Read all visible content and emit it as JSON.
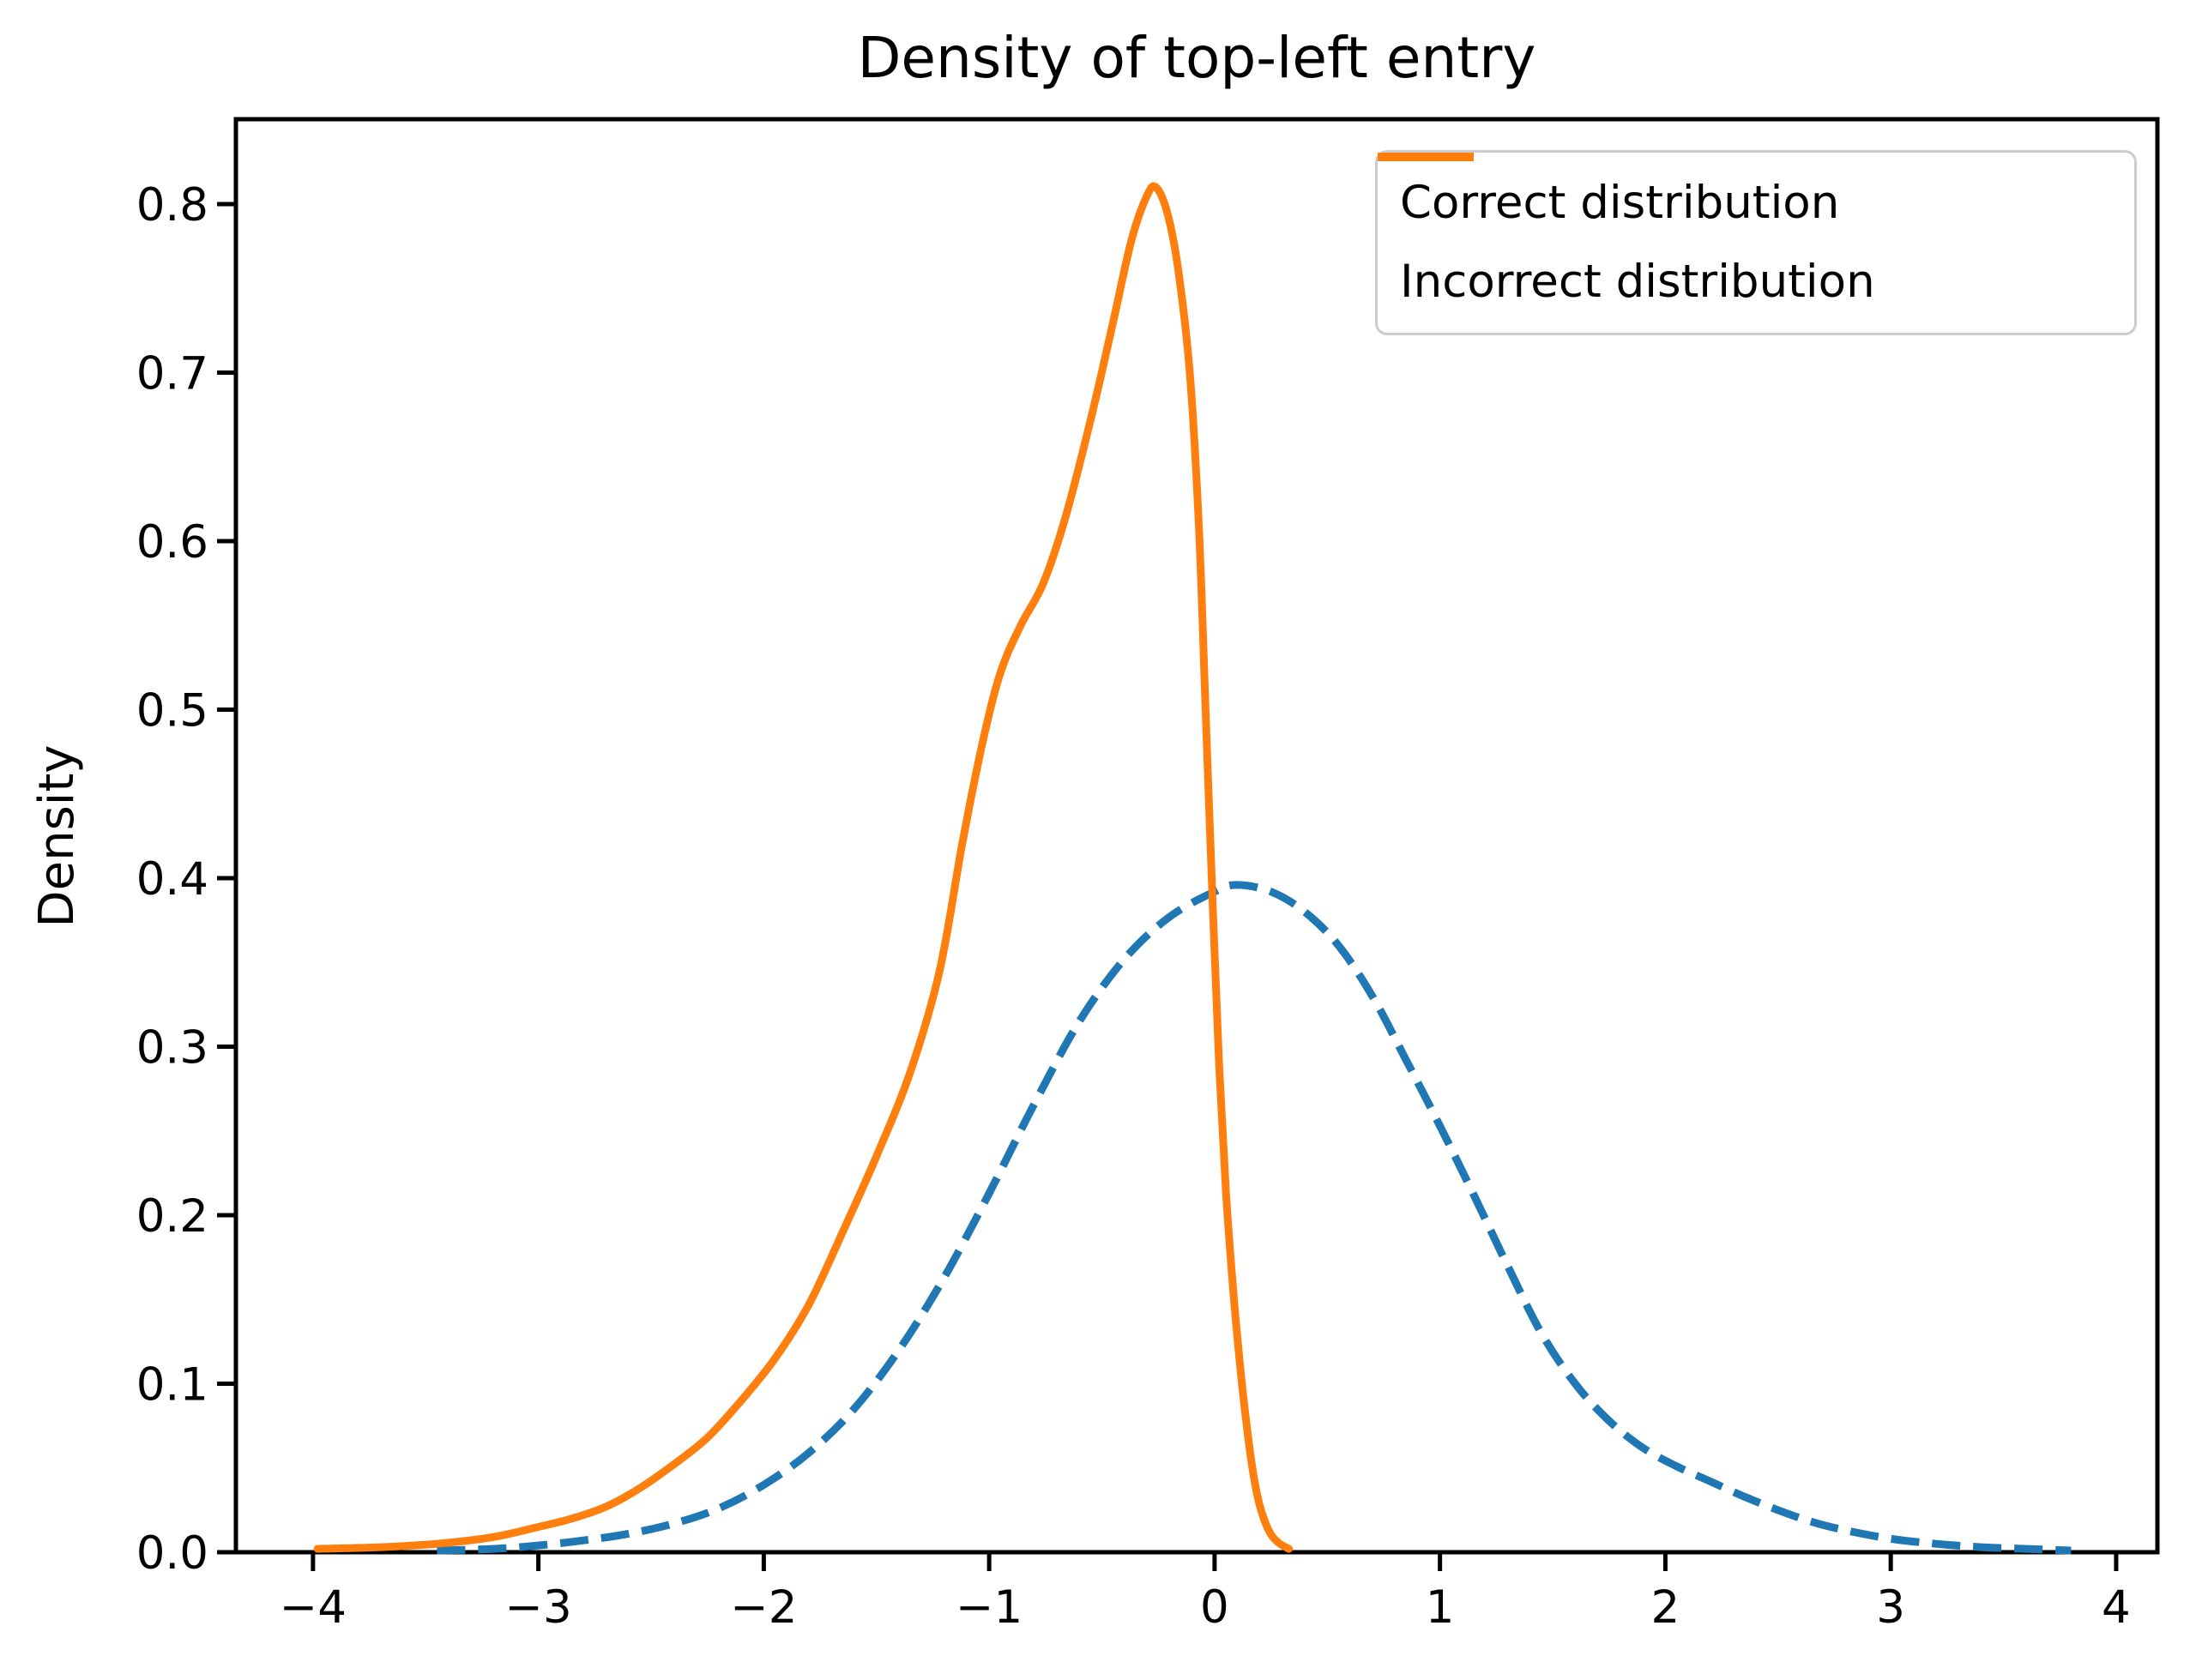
{
  "chart_data": {
    "type": "line",
    "title": "Density of top-left entry",
    "xlabel": "",
    "ylabel": "Density",
    "grid": false,
    "legend_position": "upper right",
    "xlim": [
      -4.342,
      4.183
    ],
    "ylim": [
      0,
      0.8504
    ],
    "x_ticks": [
      -4,
      -3,
      -2,
      -1,
      0,
      1,
      2,
      3,
      4
    ],
    "x_tick_labels": [
      "−4",
      "−3",
      "−2",
      "−1",
      "0",
      "1",
      "2",
      "3",
      "4"
    ],
    "y_ticks": [
      0.0,
      0.1,
      0.2,
      0.3,
      0.4,
      0.5,
      0.6,
      0.7,
      0.8
    ],
    "y_tick_labels": [
      "0.0",
      "0.1",
      "0.2",
      "0.3",
      "0.4",
      "0.5",
      "0.6",
      "0.7",
      "0.8"
    ],
    "series": [
      {
        "name": "Correct distribution",
        "color": "#1f77b4",
        "style": "dashed",
        "peak": {
          "x": 0.1,
          "density": 0.396
        },
        "points": [
          [
            -3.45,
            0.001
          ],
          [
            -3.2,
            0.002
          ],
          [
            -3.0,
            0.004
          ],
          [
            -2.8,
            0.007
          ],
          [
            -2.6,
            0.011
          ],
          [
            -2.4,
            0.017
          ],
          [
            -2.2,
            0.026
          ],
          [
            -2.0,
            0.04
          ],
          [
            -1.8,
            0.059
          ],
          [
            -1.6,
            0.085
          ],
          [
            -1.4,
            0.12
          ],
          [
            -1.2,
            0.163
          ],
          [
            -1.0,
            0.213
          ],
          [
            -0.8,
            0.266
          ],
          [
            -0.6,
            0.315
          ],
          [
            -0.4,
            0.352
          ],
          [
            -0.2,
            0.377
          ],
          [
            0.0,
            0.392
          ],
          [
            0.1,
            0.396
          ],
          [
            0.25,
            0.392
          ],
          [
            0.4,
            0.38
          ],
          [
            0.55,
            0.36
          ],
          [
            0.7,
            0.33
          ],
          [
            0.85,
            0.292
          ],
          [
            1.0,
            0.253
          ],
          [
            1.15,
            0.212
          ],
          [
            1.3,
            0.17
          ],
          [
            1.45,
            0.13
          ],
          [
            1.6,
            0.1
          ],
          [
            1.75,
            0.078
          ],
          [
            1.9,
            0.062
          ],
          [
            2.05,
            0.051
          ],
          [
            2.2,
            0.042
          ],
          [
            2.35,
            0.033
          ],
          [
            2.5,
            0.025
          ],
          [
            2.65,
            0.018
          ],
          [
            2.8,
            0.013
          ],
          [
            3.0,
            0.008
          ],
          [
            3.2,
            0.005
          ],
          [
            3.4,
            0.003
          ],
          [
            3.6,
            0.002
          ],
          [
            3.8,
            0.001
          ]
        ]
      },
      {
        "name": "Incorrect distribution",
        "color": "#ff7f0e",
        "style": "solid",
        "peak": {
          "x": -0.28,
          "density": 0.81
        },
        "points": [
          [
            -3.98,
            0.002
          ],
          [
            -3.7,
            0.003
          ],
          [
            -3.45,
            0.005
          ],
          [
            -3.2,
            0.009
          ],
          [
            -3.0,
            0.015
          ],
          [
            -2.85,
            0.02
          ],
          [
            -2.7,
            0.027
          ],
          [
            -2.55,
            0.038
          ],
          [
            -2.4,
            0.052
          ],
          [
            -2.25,
            0.068
          ],
          [
            -2.1,
            0.09
          ],
          [
            -1.95,
            0.115
          ],
          [
            -1.8,
            0.147
          ],
          [
            -1.65,
            0.19
          ],
          [
            -1.5,
            0.235
          ],
          [
            -1.35,
            0.285
          ],
          [
            -1.22,
            0.345
          ],
          [
            -1.12,
            0.42
          ],
          [
            -1.03,
            0.48
          ],
          [
            -0.95,
            0.522
          ],
          [
            -0.86,
            0.55
          ],
          [
            -0.76,
            0.575
          ],
          [
            -0.66,
            0.615
          ],
          [
            -0.55,
            0.672
          ],
          [
            -0.45,
            0.73
          ],
          [
            -0.37,
            0.778
          ],
          [
            -0.3,
            0.805
          ],
          [
            -0.26,
            0.81
          ],
          [
            -0.21,
            0.795
          ],
          [
            -0.16,
            0.76
          ],
          [
            -0.11,
            0.7
          ],
          [
            -0.07,
            0.61
          ],
          [
            -0.04,
            0.5
          ],
          [
            -0.01,
            0.39
          ],
          [
            0.02,
            0.29
          ],
          [
            0.05,
            0.215
          ],
          [
            0.08,
            0.16
          ],
          [
            0.11,
            0.115
          ],
          [
            0.14,
            0.078
          ],
          [
            0.17,
            0.048
          ],
          [
            0.2,
            0.028
          ],
          [
            0.24,
            0.013
          ],
          [
            0.28,
            0.006
          ],
          [
            0.33,
            0.002
          ]
        ]
      }
    ]
  }
}
